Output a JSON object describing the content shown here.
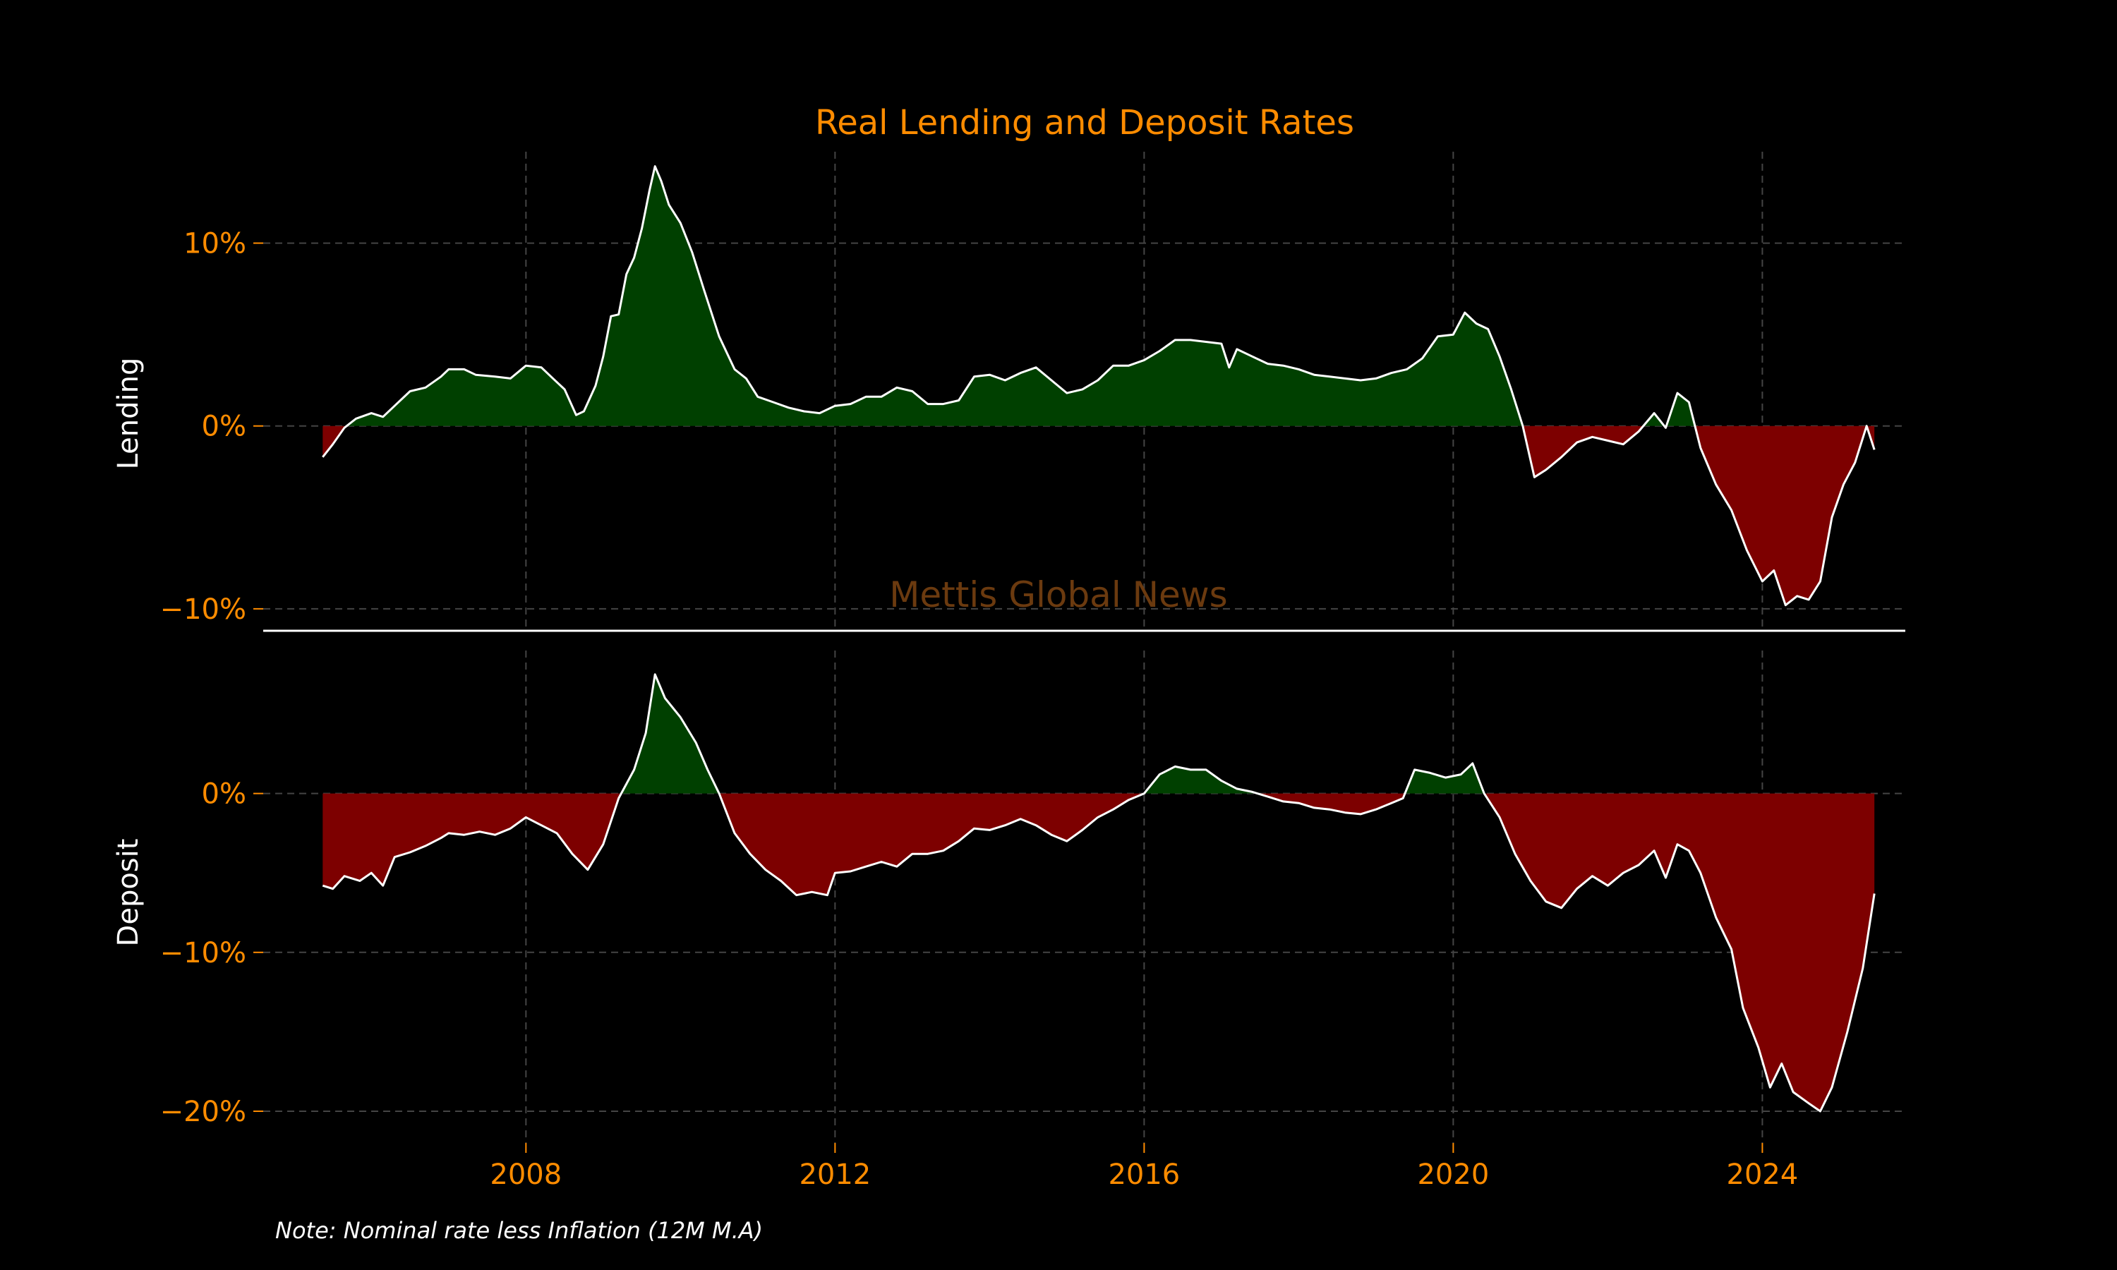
{
  "title": "Real Lending and Deposit Rates",
  "watermark": "Mettis Global News",
  "note": "Note: Nominal rate less Inflation (12M M.A)",
  "colors": {
    "text_accent": "#ff8c00",
    "positive_fill": "#004000",
    "negative_fill": "#7d0000",
    "line": "#ffffff",
    "grid": "#444444",
    "background": "#000000",
    "watermark": "#6b3a0f"
  },
  "chart_data": [
    {
      "type": "area",
      "name": "lending",
      "ylabel": "Lending",
      "yticks": [
        -10,
        0,
        10
      ],
      "ytick_labels": [
        "−10%",
        "0%",
        "10%"
      ],
      "ylim": [
        -11.2,
        15.0
      ],
      "xlim": [
        2004.6,
        2025.85
      ],
      "grid": true,
      "fill_rule": "green above 0, red below 0",
      "points": [
        [
          2005.37,
          -1.7
        ],
        [
          2005.5,
          -1.0
        ],
        [
          2005.65,
          -0.1
        ],
        [
          2005.8,
          0.4
        ],
        [
          2006.0,
          0.7
        ],
        [
          2006.15,
          0.5
        ],
        [
          2006.3,
          1.1
        ],
        [
          2006.5,
          1.9
        ],
        [
          2006.7,
          2.1
        ],
        [
          2006.9,
          2.7
        ],
        [
          2007.0,
          3.1
        ],
        [
          2007.2,
          3.1
        ],
        [
          2007.35,
          2.8
        ],
        [
          2007.6,
          2.7
        ],
        [
          2007.8,
          2.6
        ],
        [
          2008.0,
          3.3
        ],
        [
          2008.2,
          3.2
        ],
        [
          2008.35,
          2.6
        ],
        [
          2008.5,
          2.0
        ],
        [
          2008.65,
          0.6
        ],
        [
          2008.75,
          0.8
        ],
        [
          2008.9,
          2.2
        ],
        [
          2009.0,
          3.8
        ],
        [
          2009.1,
          6.0
        ],
        [
          2009.2,
          6.1
        ],
        [
          2009.3,
          8.3
        ],
        [
          2009.4,
          9.2
        ],
        [
          2009.5,
          10.8
        ],
        [
          2009.6,
          12.9
        ],
        [
          2009.67,
          14.2
        ],
        [
          2009.75,
          13.4
        ],
        [
          2009.85,
          12.1
        ],
        [
          2010.0,
          11.1
        ],
        [
          2010.15,
          9.5
        ],
        [
          2010.3,
          7.5
        ],
        [
          2010.5,
          4.9
        ],
        [
          2010.7,
          3.1
        ],
        [
          2010.85,
          2.6
        ],
        [
          2011.0,
          1.6
        ],
        [
          2011.2,
          1.3
        ],
        [
          2011.4,
          1.0
        ],
        [
          2011.6,
          0.8
        ],
        [
          2011.8,
          0.7
        ],
        [
          2012.0,
          1.1
        ],
        [
          2012.2,
          1.2
        ],
        [
          2012.4,
          1.6
        ],
        [
          2012.6,
          1.6
        ],
        [
          2012.8,
          2.1
        ],
        [
          2013.0,
          1.9
        ],
        [
          2013.2,
          1.2
        ],
        [
          2013.4,
          1.2
        ],
        [
          2013.6,
          1.4
        ],
        [
          2013.8,
          2.7
        ],
        [
          2014.0,
          2.8
        ],
        [
          2014.2,
          2.5
        ],
        [
          2014.4,
          2.9
        ],
        [
          2014.6,
          3.2
        ],
        [
          2014.8,
          2.5
        ],
        [
          2015.0,
          1.8
        ],
        [
          2015.2,
          2.0
        ],
        [
          2015.4,
          2.5
        ],
        [
          2015.6,
          3.3
        ],
        [
          2015.8,
          3.3
        ],
        [
          2016.0,
          3.6
        ],
        [
          2016.2,
          4.1
        ],
        [
          2016.4,
          4.7
        ],
        [
          2016.6,
          4.7
        ],
        [
          2016.8,
          4.6
        ],
        [
          2017.0,
          4.5
        ],
        [
          2017.1,
          3.2
        ],
        [
          2017.2,
          4.2
        ],
        [
          2017.4,
          3.8
        ],
        [
          2017.6,
          3.4
        ],
        [
          2017.8,
          3.3
        ],
        [
          2018.0,
          3.1
        ],
        [
          2018.2,
          2.8
        ],
        [
          2018.4,
          2.7
        ],
        [
          2018.6,
          2.6
        ],
        [
          2018.8,
          2.5
        ],
        [
          2019.0,
          2.6
        ],
        [
          2019.2,
          2.9
        ],
        [
          2019.4,
          3.1
        ],
        [
          2019.6,
          3.7
        ],
        [
          2019.8,
          4.9
        ],
        [
          2020.0,
          5.0
        ],
        [
          2020.15,
          6.2
        ],
        [
          2020.3,
          5.6
        ],
        [
          2020.45,
          5.3
        ],
        [
          2020.6,
          3.8
        ],
        [
          2020.75,
          2.0
        ],
        [
          2020.9,
          0.0
        ],
        [
          2021.05,
          -2.8
        ],
        [
          2021.2,
          -2.4
        ],
        [
          2021.4,
          -1.7
        ],
        [
          2021.6,
          -0.9
        ],
        [
          2021.8,
          -0.6
        ],
        [
          2022.0,
          -0.8
        ],
        [
          2022.2,
          -1.0
        ],
        [
          2022.4,
          -0.3
        ],
        [
          2022.6,
          0.7
        ],
        [
          2022.75,
          -0.1
        ],
        [
          2022.9,
          1.8
        ],
        [
          2023.05,
          1.3
        ],
        [
          2023.2,
          -1.2
        ],
        [
          2023.4,
          -3.2
        ],
        [
          2023.6,
          -4.6
        ],
        [
          2023.8,
          -6.8
        ],
        [
          2024.0,
          -8.5
        ],
        [
          2024.15,
          -7.9
        ],
        [
          2024.3,
          -9.8
        ],
        [
          2024.45,
          -9.3
        ],
        [
          2024.6,
          -9.5
        ],
        [
          2024.75,
          -8.5
        ],
        [
          2024.9,
          -5.0
        ],
        [
          2025.05,
          -3.2
        ],
        [
          2025.2,
          -2.0
        ],
        [
          2025.35,
          0.0
        ],
        [
          2025.45,
          -1.3
        ]
      ]
    },
    {
      "type": "area",
      "name": "deposit",
      "ylabel": "Deposit",
      "yticks": [
        -20,
        -10,
        0
      ],
      "ytick_labels": [
        "−20%",
        "−10%",
        "0%"
      ],
      "ylim": [
        -22.0,
        9.0
      ],
      "xlim": [
        2004.6,
        2025.85
      ],
      "xticks": [
        2008,
        2012,
        2016,
        2020,
        2024
      ],
      "xtick_labels": [
        "2008",
        "2012",
        "2016",
        "2020",
        "2024"
      ],
      "grid": true,
      "fill_rule": "green above 0, red below 0",
      "points": [
        [
          2005.37,
          -5.8
        ],
        [
          2005.5,
          -6.0
        ],
        [
          2005.65,
          -5.2
        ],
        [
          2005.85,
          -5.5
        ],
        [
          2006.0,
          -5.0
        ],
        [
          2006.15,
          -5.8
        ],
        [
          2006.3,
          -4.0
        ],
        [
          2006.5,
          -3.7
        ],
        [
          2006.7,
          -3.3
        ],
        [
          2006.9,
          -2.8
        ],
        [
          2007.0,
          -2.5
        ],
        [
          2007.2,
          -2.6
        ],
        [
          2007.4,
          -2.4
        ],
        [
          2007.6,
          -2.6
        ],
        [
          2007.8,
          -2.2
        ],
        [
          2008.0,
          -1.5
        ],
        [
          2008.2,
          -2.0
        ],
        [
          2008.4,
          -2.5
        ],
        [
          2008.6,
          -3.8
        ],
        [
          2008.8,
          -4.8
        ],
        [
          2009.0,
          -3.2
        ],
        [
          2009.2,
          -0.3
        ],
        [
          2009.4,
          1.5
        ],
        [
          2009.55,
          3.8
        ],
        [
          2009.67,
          7.5
        ],
        [
          2009.8,
          6.0
        ],
        [
          2010.0,
          4.8
        ],
        [
          2010.2,
          3.2
        ],
        [
          2010.35,
          1.5
        ],
        [
          2010.5,
          0.0
        ],
        [
          2010.7,
          -2.5
        ],
        [
          2010.9,
          -3.8
        ],
        [
          2011.1,
          -4.8
        ],
        [
          2011.3,
          -5.5
        ],
        [
          2011.5,
          -6.4
        ],
        [
          2011.7,
          -6.2
        ],
        [
          2011.9,
          -6.4
        ],
        [
          2012.0,
          -5.0
        ],
        [
          2012.2,
          -4.9
        ],
        [
          2012.4,
          -4.6
        ],
        [
          2012.6,
          -4.3
        ],
        [
          2012.8,
          -4.6
        ],
        [
          2013.0,
          -3.8
        ],
        [
          2013.2,
          -3.8
        ],
        [
          2013.4,
          -3.6
        ],
        [
          2013.6,
          -3.0
        ],
        [
          2013.8,
          -2.2
        ],
        [
          2014.0,
          -2.3
        ],
        [
          2014.2,
          -2.0
        ],
        [
          2014.4,
          -1.6
        ],
        [
          2014.6,
          -2.0
        ],
        [
          2014.8,
          -2.6
        ],
        [
          2015.0,
          -3.0
        ],
        [
          2015.2,
          -2.3
        ],
        [
          2015.4,
          -1.5
        ],
        [
          2015.6,
          -1.0
        ],
        [
          2015.8,
          -0.4
        ],
        [
          2016.0,
          0.0
        ],
        [
          2016.2,
          1.2
        ],
        [
          2016.4,
          1.7
        ],
        [
          2016.6,
          1.5
        ],
        [
          2016.8,
          1.5
        ],
        [
          2017.0,
          0.8
        ],
        [
          2017.2,
          0.3
        ],
        [
          2017.4,
          0.1
        ],
        [
          2017.6,
          -0.2
        ],
        [
          2017.8,
          -0.5
        ],
        [
          2018.0,
          -0.6
        ],
        [
          2018.2,
          -0.9
        ],
        [
          2018.4,
          -1.0
        ],
        [
          2018.6,
          -1.2
        ],
        [
          2018.8,
          -1.3
        ],
        [
          2019.0,
          -1.0
        ],
        [
          2019.2,
          -0.6
        ],
        [
          2019.35,
          -0.3
        ],
        [
          2019.5,
          1.5
        ],
        [
          2019.7,
          1.3
        ],
        [
          2019.9,
          1.0
        ],
        [
          2020.1,
          1.2
        ],
        [
          2020.25,
          1.9
        ],
        [
          2020.4,
          0.0
        ],
        [
          2020.6,
          -1.5
        ],
        [
          2020.8,
          -3.8
        ],
        [
          2021.0,
          -5.5
        ],
        [
          2021.2,
          -6.8
        ],
        [
          2021.4,
          -7.2
        ],
        [
          2021.6,
          -6.0
        ],
        [
          2021.8,
          -5.2
        ],
        [
          2022.0,
          -5.8
        ],
        [
          2022.2,
          -5.0
        ],
        [
          2022.4,
          -4.5
        ],
        [
          2022.6,
          -3.6
        ],
        [
          2022.75,
          -5.3
        ],
        [
          2022.9,
          -3.2
        ],
        [
          2023.05,
          -3.6
        ],
        [
          2023.2,
          -5.0
        ],
        [
          2023.4,
          -7.8
        ],
        [
          2023.6,
          -9.8
        ],
        [
          2023.75,
          -13.5
        ],
        [
          2023.95,
          -16.0
        ],
        [
          2024.1,
          -18.5
        ],
        [
          2024.25,
          -17.0
        ],
        [
          2024.4,
          -18.8
        ],
        [
          2024.6,
          -19.5
        ],
        [
          2024.75,
          -20.0
        ],
        [
          2024.9,
          -18.5
        ],
        [
          2025.1,
          -15.0
        ],
        [
          2025.3,
          -11.0
        ],
        [
          2025.45,
          -6.3
        ]
      ]
    }
  ]
}
